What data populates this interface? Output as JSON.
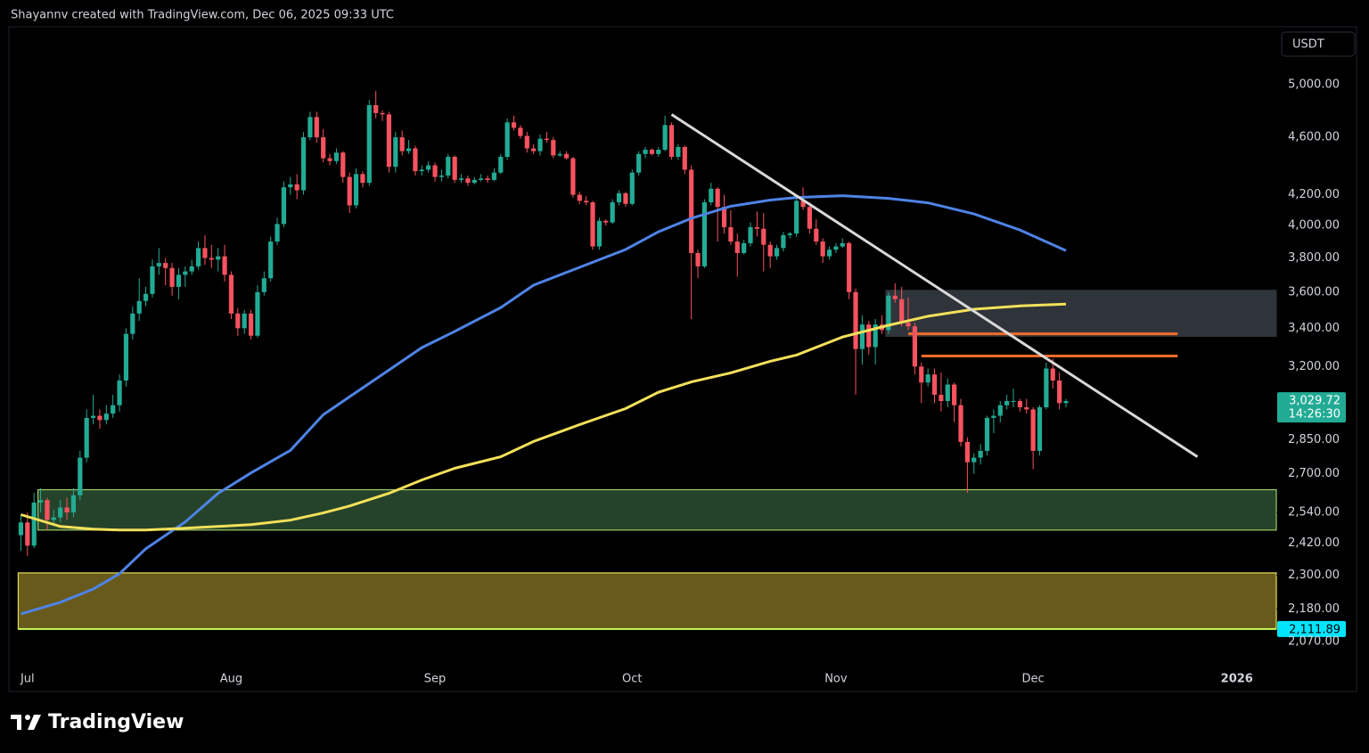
{
  "header": "Shayannv created with TradingView.com, Dec 06, 2025 09:33 UTC",
  "brand": "TradingView",
  "chart_data": {
    "type": "candlestick",
    "currency": "USDT",
    "log_scale": true,
    "ylim": [
      1990,
      5480
    ],
    "yticks": [
      {
        "value": 5000,
        "label": "5,000.00"
      },
      {
        "value": 4600,
        "label": "4,600.00"
      },
      {
        "value": 4200,
        "label": "4,200.00"
      },
      {
        "value": 4000,
        "label": "4,000.00"
      },
      {
        "value": 3800,
        "label": "3,800.00"
      },
      {
        "value": 3600,
        "label": "3,600.00"
      },
      {
        "value": 3400,
        "label": "3,400.00"
      },
      {
        "value": 3200,
        "label": "3,200.00"
      },
      {
        "value": 2850,
        "label": "2,850.00"
      },
      {
        "value": 2700,
        "label": "2,700.00"
      },
      {
        "value": 2540,
        "label": "2,540.00"
      },
      {
        "value": 2420,
        "label": "2,420.00"
      },
      {
        "value": 2300,
        "label": "2,300.00"
      },
      {
        "value": 2180,
        "label": "2,180.00"
      },
      {
        "value": 2070,
        "label": "2,070.00"
      }
    ],
    "xlim": [
      "2025-06-30",
      "2026-01-07"
    ],
    "xticks": [
      {
        "value": "2025-07-01",
        "label": "Jul"
      },
      {
        "value": "2025-08-01",
        "label": "Aug"
      },
      {
        "value": "2025-09-01",
        "label": "Sep"
      },
      {
        "value": "2025-10-01",
        "label": "Oct"
      },
      {
        "value": "2025-11-01",
        "label": "Nov"
      },
      {
        "value": "2025-12-01",
        "label": "Dec"
      },
      {
        "value": "2026-01-01",
        "label": "2026"
      }
    ],
    "up_color": "#22ab94",
    "down_color": "#f7525f",
    "x": [
      "2025-06-30",
      "2025-07-01",
      "2025-07-02",
      "2025-07-03",
      "2025-07-04",
      "2025-07-05",
      "2025-07-06",
      "2025-07-07",
      "2025-07-08",
      "2025-07-09",
      "2025-07-10",
      "2025-07-11",
      "2025-07-12",
      "2025-07-13",
      "2025-07-14",
      "2025-07-15",
      "2025-07-16",
      "2025-07-17",
      "2025-07-18",
      "2025-07-19",
      "2025-07-20",
      "2025-07-21",
      "2025-07-22",
      "2025-07-23",
      "2025-07-24",
      "2025-07-25",
      "2025-07-26",
      "2025-07-27",
      "2025-07-28",
      "2025-07-29",
      "2025-07-30",
      "2025-07-31",
      "2025-08-01",
      "2025-08-02",
      "2025-08-03",
      "2025-08-04",
      "2025-08-05",
      "2025-08-06",
      "2025-08-07",
      "2025-08-08",
      "2025-08-09",
      "2025-08-10",
      "2025-08-11",
      "2025-08-12",
      "2025-08-13",
      "2025-08-14",
      "2025-08-15",
      "2025-08-16",
      "2025-08-17",
      "2025-08-18",
      "2025-08-19",
      "2025-08-20",
      "2025-08-21",
      "2025-08-22",
      "2025-08-23",
      "2025-08-24",
      "2025-08-25",
      "2025-08-26",
      "2025-08-27",
      "2025-08-28",
      "2025-08-29",
      "2025-08-30",
      "2025-08-31",
      "2025-09-01",
      "2025-09-02",
      "2025-09-03",
      "2025-09-04",
      "2025-09-05",
      "2025-09-06",
      "2025-09-07",
      "2025-09-08",
      "2025-09-09",
      "2025-09-10",
      "2025-09-11",
      "2025-09-12",
      "2025-09-13",
      "2025-09-14",
      "2025-09-15",
      "2025-09-16",
      "2025-09-17",
      "2025-09-18",
      "2025-09-19",
      "2025-09-20",
      "2025-09-21",
      "2025-09-22",
      "2025-09-23",
      "2025-09-24",
      "2025-09-25",
      "2025-09-26",
      "2025-09-27",
      "2025-09-28",
      "2025-09-29",
      "2025-09-30",
      "2025-10-01",
      "2025-10-02",
      "2025-10-03",
      "2025-10-04",
      "2025-10-05",
      "2025-10-06",
      "2025-10-07",
      "2025-10-08",
      "2025-10-09",
      "2025-10-10",
      "2025-10-11",
      "2025-10-12",
      "2025-10-13",
      "2025-10-14",
      "2025-10-15",
      "2025-10-16",
      "2025-10-17",
      "2025-10-18",
      "2025-10-19",
      "2025-10-20",
      "2025-10-21",
      "2025-10-22",
      "2025-10-23",
      "2025-10-24",
      "2025-10-25",
      "2025-10-26",
      "2025-10-27",
      "2025-10-28",
      "2025-10-29",
      "2025-10-30",
      "2025-10-31",
      "2025-11-01",
      "2025-11-02",
      "2025-11-03",
      "2025-11-04",
      "2025-11-05",
      "2025-11-06",
      "2025-11-07",
      "2025-11-08",
      "2025-11-09",
      "2025-11-10",
      "2025-11-11",
      "2025-11-12",
      "2025-11-13",
      "2025-11-14",
      "2025-11-15",
      "2025-11-16",
      "2025-11-17",
      "2025-11-18",
      "2025-11-19",
      "2025-11-20",
      "2025-11-21",
      "2025-11-22",
      "2025-11-23",
      "2025-11-24",
      "2025-11-25",
      "2025-11-26",
      "2025-11-27",
      "2025-11-28",
      "2025-11-29",
      "2025-11-30",
      "2025-12-01",
      "2025-12-02",
      "2025-12-03",
      "2025-12-04",
      "2025-12-05",
      "2025-12-06"
    ],
    "ohlc": [
      [
        2450,
        2530,
        2390,
        2500
      ],
      [
        2500,
        2540,
        2370,
        2410
      ],
      [
        2410,
        2620,
        2400,
        2580
      ],
      [
        2580,
        2640,
        2540,
        2590
      ],
      [
        2590,
        2600,
        2470,
        2510
      ],
      [
        2510,
        2550,
        2490,
        2520
      ],
      [
        2520,
        2590,
        2500,
        2560
      ],
      [
        2560,
        2600,
        2510,
        2540
      ],
      [
        2540,
        2640,
        2520,
        2610
      ],
      [
        2610,
        2800,
        2590,
        2770
      ],
      [
        2770,
        2990,
        2750,
        2950
      ],
      [
        2950,
        3060,
        2920,
        2960
      ],
      [
        2960,
        2990,
        2900,
        2940
      ],
      [
        2940,
        3010,
        2920,
        2970
      ],
      [
        2970,
        3060,
        2950,
        3010
      ],
      [
        3010,
        3160,
        2980,
        3130
      ],
      [
        3130,
        3400,
        3100,
        3370
      ],
      [
        3370,
        3520,
        3340,
        3480
      ],
      [
        3480,
        3680,
        3440,
        3550
      ],
      [
        3550,
        3630,
        3520,
        3590
      ],
      [
        3590,
        3790,
        3570,
        3750
      ],
      [
        3750,
        3860,
        3700,
        3770
      ],
      [
        3770,
        3800,
        3640,
        3740
      ],
      [
        3740,
        3770,
        3580,
        3630
      ],
      [
        3630,
        3740,
        3560,
        3700
      ],
      [
        3700,
        3750,
        3630,
        3720
      ],
      [
        3720,
        3790,
        3700,
        3750
      ],
      [
        3750,
        3900,
        3730,
        3860
      ],
      [
        3860,
        3940,
        3760,
        3800
      ],
      [
        3800,
        3880,
        3740,
        3790
      ],
      [
        3790,
        3860,
        3720,
        3810
      ],
      [
        3810,
        3880,
        3660,
        3700
      ],
      [
        3700,
        3720,
        3450,
        3480
      ],
      [
        3480,
        3510,
        3360,
        3400
      ],
      [
        3400,
        3500,
        3370,
        3480
      ],
      [
        3480,
        3500,
        3340,
        3360
      ],
      [
        3360,
        3640,
        3350,
        3600
      ],
      [
        3600,
        3720,
        3580,
        3680
      ],
      [
        3680,
        3930,
        3660,
        3900
      ],
      [
        3900,
        4050,
        3880,
        4010
      ],
      [
        4010,
        4290,
        3990,
        4250
      ],
      [
        4250,
        4320,
        4200,
        4270
      ],
      [
        4270,
        4340,
        4170,
        4230
      ],
      [
        4230,
        4640,
        4200,
        4600
      ],
      [
        4600,
        4790,
        4580,
        4750
      ],
      [
        4750,
        4790,
        4560,
        4600
      ],
      [
        4600,
        4660,
        4420,
        4450
      ],
      [
        4450,
        4480,
        4400,
        4430
      ],
      [
        4430,
        4520,
        4410,
        4490
      ],
      [
        4490,
        4500,
        4280,
        4320
      ],
      [
        4320,
        4350,
        4080,
        4130
      ],
      [
        4130,
        4380,
        4110,
        4340
      ],
      [
        4340,
        4360,
        4250,
        4280
      ],
      [
        4280,
        4880,
        4260,
        4840
      ],
      [
        4840,
        4950,
        4740,
        4780
      ],
      [
        4780,
        4800,
        4720,
        4770
      ],
      [
        4770,
        4790,
        4350,
        4390
      ],
      [
        4390,
        4640,
        4350,
        4600
      ],
      [
        4600,
        4650,
        4470,
        4500
      ],
      [
        4500,
        4580,
        4480,
        4520
      ],
      [
        4520,
        4540,
        4330,
        4360
      ],
      [
        4360,
        4400,
        4330,
        4370
      ],
      [
        4370,
        4430,
        4350,
        4400
      ],
      [
        4400,
        4420,
        4290,
        4320
      ],
      [
        4320,
        4370,
        4290,
        4330
      ],
      [
        4330,
        4480,
        4310,
        4460
      ],
      [
        4460,
        4470,
        4280,
        4300
      ],
      [
        4300,
        4340,
        4280,
        4310
      ],
      [
        4310,
        4330,
        4260,
        4280
      ],
      [
        4280,
        4320,
        4270,
        4300
      ],
      [
        4300,
        4340,
        4290,
        4310
      ],
      [
        4310,
        4330,
        4280,
        4300
      ],
      [
        4300,
        4380,
        4290,
        4350
      ],
      [
        4350,
        4480,
        4340,
        4460
      ],
      [
        4460,
        4740,
        4440,
        4710
      ],
      [
        4710,
        4760,
        4650,
        4670
      ],
      [
        4670,
        4690,
        4590,
        4610
      ],
      [
        4610,
        4640,
        4490,
        4520
      ],
      [
        4520,
        4550,
        4480,
        4500
      ],
      [
        4500,
        4620,
        4470,
        4590
      ],
      [
        4590,
        4640,
        4560,
        4580
      ],
      [
        4580,
        4600,
        4450,
        4470
      ],
      [
        4470,
        4500,
        4460,
        4480
      ],
      [
        4480,
        4500,
        4440,
        4450
      ],
      [
        4450,
        4460,
        4180,
        4200
      ],
      [
        4200,
        4220,
        4140,
        4160
      ],
      [
        4160,
        4190,
        4130,
        4150
      ],
      [
        4150,
        4160,
        3850,
        3870
      ],
      [
        3870,
        4050,
        3850,
        4030
      ],
      [
        4030,
        4040,
        4000,
        4020
      ],
      [
        4020,
        4170,
        4010,
        4150
      ],
      [
        4150,
        4230,
        4130,
        4210
      ],
      [
        4210,
        4220,
        4120,
        4140
      ],
      [
        4140,
        4370,
        4130,
        4350
      ],
      [
        4350,
        4500,
        4330,
        4480
      ],
      [
        4480,
        4530,
        4450,
        4510
      ],
      [
        4510,
        4520,
        4470,
        4480
      ],
      [
        4480,
        4530,
        4460,
        4510
      ],
      [
        4510,
        4760,
        4500,
        4690
      ],
      [
        4690,
        4710,
        4440,
        4460
      ],
      [
        4460,
        4550,
        4440,
        4530
      ],
      [
        4530,
        4540,
        4340,
        4370
      ],
      [
        4370,
        4400,
        3450,
        3830
      ],
      [
        3830,
        3850,
        3680,
        3750
      ],
      [
        3750,
        4170,
        3740,
        4150
      ],
      [
        4150,
        4280,
        4130,
        4240
      ],
      [
        4240,
        4250,
        3900,
        4120
      ],
      [
        4120,
        4200,
        3950,
        3990
      ],
      [
        3990,
        4100,
        3880,
        3900
      ],
      [
        3900,
        3950,
        3690,
        3830
      ],
      [
        3830,
        3910,
        3820,
        3890
      ],
      [
        3890,
        4020,
        3870,
        3990
      ],
      [
        3990,
        4090,
        3930,
        3980
      ],
      [
        3980,
        4080,
        3720,
        3880
      ],
      [
        3880,
        3900,
        3740,
        3810
      ],
      [
        3810,
        3880,
        3790,
        3860
      ],
      [
        3860,
        3960,
        3840,
        3940
      ],
      [
        3940,
        3960,
        3920,
        3950
      ],
      [
        3950,
        4180,
        3930,
        4160
      ],
      [
        4160,
        4250,
        4100,
        4120
      ],
      [
        4120,
        4150,
        3950,
        3980
      ],
      [
        3980,
        4040,
        3880,
        3900
      ],
      [
        3900,
        3920,
        3770,
        3810
      ],
      [
        3810,
        3870,
        3790,
        3850
      ],
      [
        3850,
        3890,
        3830,
        3870
      ],
      [
        3870,
        3920,
        3860,
        3890
      ],
      [
        3890,
        3900,
        3560,
        3600
      ],
      [
        3600,
        3620,
        3060,
        3290
      ],
      [
        3290,
        3470,
        3210,
        3420
      ],
      [
        3420,
        3440,
        3260,
        3300
      ],
      [
        3300,
        3450,
        3210,
        3420
      ],
      [
        3420,
        3470,
        3370,
        3390
      ],
      [
        3390,
        3600,
        3370,
        3580
      ],
      [
        3580,
        3650,
        3540,
        3560
      ],
      [
        3560,
        3630,
        3410,
        3430
      ],
      [
        3430,
        3570,
        3390,
        3410
      ],
      [
        3410,
        3430,
        3160,
        3200
      ],
      [
        3200,
        3220,
        3020,
        3120
      ],
      [
        3120,
        3190,
        3100,
        3160
      ],
      [
        3160,
        3190,
        3020,
        3060
      ],
      [
        3060,
        3170,
        2980,
        3030
      ],
      [
        3030,
        3140,
        3000,
        3110
      ],
      [
        3110,
        3120,
        2930,
        3010
      ],
      [
        3010,
        3040,
        2820,
        2840
      ],
      [
        2840,
        2860,
        2620,
        2750
      ],
      [
        2750,
        2790,
        2700,
        2770
      ],
      [
        2770,
        2830,
        2740,
        2800
      ],
      [
        2800,
        2960,
        2780,
        2950
      ],
      [
        2950,
        2990,
        2880,
        2960
      ],
      [
        2960,
        3030,
        2930,
        3010
      ],
      [
        3010,
        3060,
        2990,
        3030
      ],
      [
        3030,
        3090,
        3000,
        3030
      ],
      [
        3030,
        3040,
        2980,
        3000
      ],
      [
        3000,
        3040,
        2970,
        2990
      ],
      [
        2990,
        3000,
        2720,
        2800
      ],
      [
        2800,
        3010,
        2780,
        3000
      ],
      [
        3000,
        3220,
        2990,
        3190
      ],
      [
        3190,
        3240,
        3090,
        3130
      ],
      [
        3130,
        3170,
        2990,
        3020
      ],
      [
        3020,
        3040,
        3000,
        3029.72
      ]
    ],
    "last_price": {
      "value": 3029.72,
      "label": "3,029.72"
    },
    "countdown": "14:26:30",
    "ma": {
      "x": [
        "2025-06-30",
        "2025-07-06",
        "2025-07-11",
        "2025-07-15",
        "2025-07-19",
        "2025-07-25",
        "2025-07-30",
        "2025-08-04",
        "2025-08-10",
        "2025-08-15",
        "2025-08-19",
        "2025-08-25",
        "2025-08-30",
        "2025-09-04",
        "2025-09-11",
        "2025-09-16",
        "2025-09-23",
        "2025-09-30",
        "2025-10-05",
        "2025-10-10",
        "2025-10-16",
        "2025-10-22",
        "2025-10-26",
        "2025-11-02",
        "2025-11-09",
        "2025-11-15",
        "2025-11-22",
        "2025-11-29",
        "2025-12-06"
      ],
      "series": [
        {
          "color": "#4f83e6",
          "values": [
            2163,
            2203,
            2250,
            2305,
            2398,
            2502,
            2618,
            2704,
            2802,
            2965,
            3050,
            3182,
            3297,
            3383,
            3513,
            3640,
            3744,
            3851,
            3961,
            4046,
            4124,
            4165,
            4182,
            4194,
            4176,
            4147,
            4074,
            3972,
            3845
          ]
        },
        {
          "color": "#f3e05a",
          "values": [
            2531,
            2484,
            2474,
            2470,
            2470,
            2477,
            2484,
            2491,
            2509,
            2538,
            2566,
            2618,
            2674,
            2724,
            2774,
            2842,
            2919,
            2994,
            3072,
            3123,
            3168,
            3227,
            3259,
            3353,
            3416,
            3465,
            3504,
            3522,
            3532
          ]
        }
      ]
    },
    "zones": [
      {
        "lower": 2470,
        "upper": 2633,
        "from": "2025-07-03",
        "fill": "#25432a",
        "stroke": "#9ccc65"
      },
      {
        "lower": 2111.89,
        "upper": 2308,
        "from": "2025-06-30",
        "fill": "#675a1c",
        "stroke": "#e8e05a",
        "lower_label": "2,111.89"
      },
      {
        "lower": 3357,
        "upper": 3610,
        "from": "2025-11-09",
        "fill": "#2e3439",
        "stroke": "#2e3439"
      }
    ],
    "levels": [
      {
        "value": 3370,
        "from": "2025-11-12",
        "to": "2025-12-23",
        "color": "#f26b2a"
      },
      {
        "value": 3254,
        "from": "2025-11-14",
        "to": "2025-12-23",
        "color": "#f26b2a"
      }
    ],
    "trendline": {
      "x": [
        "2025-10-07",
        "2025-12-26"
      ],
      "values": [
        4769,
        2774
      ],
      "color": "#d9d9d9"
    }
  }
}
